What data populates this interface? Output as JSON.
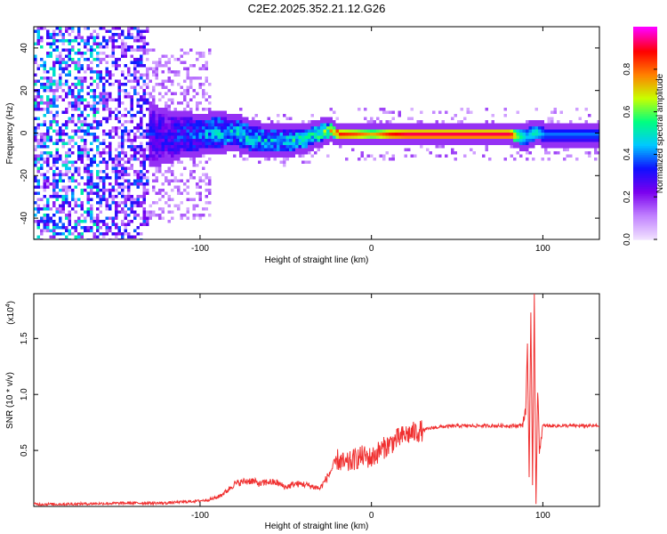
{
  "title": "C2E2.2025.352.21.12.G26",
  "colors": {
    "snr_line": "#f03030",
    "colormap": [
      "#f0e0ff",
      "#c080ff",
      "#7a00ee",
      "#1010ff",
      "#00c8ff",
      "#00ff80",
      "#c8ff00",
      "#ff8000",
      "#ff0000",
      "#ff00ff"
    ]
  },
  "chart_data": [
    {
      "type": "heatmap",
      "xlabel": "Height of straight line (km)",
      "ylabel": "Frequency (Hz)",
      "xlim": [
        -197,
        133
      ],
      "ylim": [
        -50,
        50
      ],
      "xticks": [
        -100,
        0,
        100
      ],
      "yticks": [
        -40,
        -20,
        0,
        20,
        40
      ],
      "grid": false,
      "colorbar": {
        "label": "Normalized spectral amplitude",
        "range": [
          0,
          1
        ],
        "ticks": [
          0.0,
          0.2,
          0.4,
          0.6,
          0.8
        ]
      },
      "ridge": {
        "x": [
          -130,
          -120,
          -110,
          -100,
          -90,
          -80,
          -70,
          -60,
          -50,
          -40,
          -30,
          -25,
          -20,
          -10,
          0,
          10,
          20,
          40,
          60,
          80,
          85,
          90,
          95,
          100,
          120,
          133
        ],
        "frequency": [
          0,
          -1,
          0,
          0,
          1,
          1,
          -2,
          -3,
          -3,
          -2,
          1,
          2,
          0,
          0,
          0,
          0,
          0,
          0,
          0,
          0,
          -1,
          -1,
          1,
          0,
          0,
          0
        ],
        "halfwidth": [
          12,
          10,
          8,
          7,
          7,
          6,
          6,
          5,
          5,
          4,
          4,
          3,
          2,
          2,
          2,
          2,
          2,
          2,
          2,
          2,
          3,
          4,
          3,
          3,
          3,
          3
        ],
        "amplitude": [
          0.3,
          0.3,
          0.35,
          0.4,
          0.45,
          0.45,
          0.45,
          0.45,
          0.45,
          0.5,
          0.55,
          0.6,
          0.9,
          0.85,
          0.75,
          0.9,
          0.95,
          0.95,
          0.95,
          0.95,
          0.6,
          0.45,
          0.55,
          0.4,
          0.4,
          0.4
        ]
      }
    },
    {
      "type": "line",
      "xlabel": "Height of straight line (km)",
      "ylabel": "SNR (10 * v/v)",
      "y_multiplier": "(x10",
      "y_multiplier_exp": "4",
      "y_multiplier_close": ")",
      "xlim": [
        -197,
        133
      ],
      "ylim": [
        0,
        1.9
      ],
      "xticks": [
        -100,
        0,
        100
      ],
      "yticks": [
        0.5,
        1.0,
        1.5
      ],
      "ytick_labels": [
        "0.5",
        "1.0",
        "1.5"
      ],
      "grid": false,
      "series": [
        {
          "x": [
            -197,
            -180,
            -160,
            -140,
            -120,
            -110,
            -100,
            -95,
            -90,
            -85,
            -80,
            -75,
            -70,
            -65,
            -60,
            -55,
            -50,
            -45,
            -40,
            -35,
            -30,
            -25,
            -20,
            -15,
            -10,
            -5,
            0,
            5,
            10,
            15,
            20,
            25,
            30,
            35,
            40,
            50,
            60,
            70,
            80,
            85,
            88,
            90,
            91,
            92,
            93,
            94,
            95,
            96,
            97,
            98,
            100,
            110,
            120,
            133
          ],
          "values": [
            0.02,
            0.02,
            0.025,
            0.03,
            0.03,
            0.04,
            0.05,
            0.06,
            0.08,
            0.13,
            0.2,
            0.22,
            0.23,
            0.2,
            0.22,
            0.21,
            0.17,
            0.2,
            0.2,
            0.18,
            0.16,
            0.28,
            0.42,
            0.37,
            0.42,
            0.45,
            0.43,
            0.5,
            0.55,
            0.6,
            0.64,
            0.66,
            0.68,
            0.7,
            0.71,
            0.72,
            0.72,
            0.72,
            0.72,
            0.72,
            0.73,
            0.85,
            1.45,
            0.3,
            1.7,
            0.15,
            1.9,
            0.05,
            1.05,
            0.5,
            0.72,
            0.72,
            0.72,
            0.72
          ]
        }
      ]
    }
  ]
}
